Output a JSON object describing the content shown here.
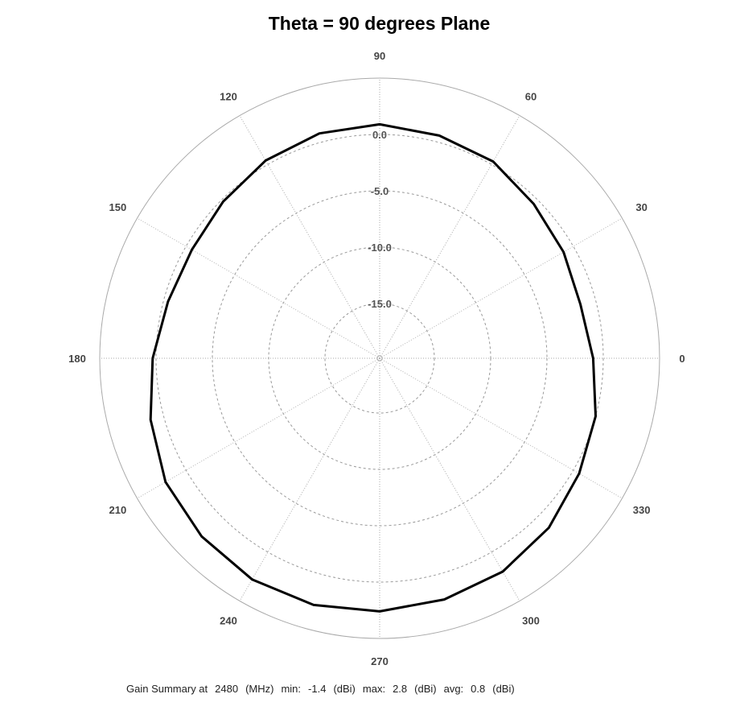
{
  "chart_data": {
    "type": "polar-line",
    "title": "Theta = 90 degrees Plane",
    "angle_unit": "degrees",
    "angle_ticks": [
      0,
      30,
      60,
      90,
      120,
      150,
      180,
      210,
      240,
      270,
      300,
      330
    ],
    "radial_ticks": [
      0.0,
      -5.0,
      -10.0,
      -15.0
    ],
    "radial_tick_labels": [
      "0.0",
      "-5.0",
      "-10.0",
      "-15.0"
    ],
    "rlim": [
      -20,
      5
    ],
    "grid": true,
    "series": [
      {
        "angles": [
          0,
          15,
          30,
          45,
          60,
          75,
          90,
          105,
          120,
          135,
          150,
          165,
          180,
          195,
          210,
          225,
          240,
          255,
          270,
          285,
          300,
          315,
          330,
          345
        ],
        "values": [
          -0.9,
          -1.4,
          -1.0,
          -0.5,
          0.3,
          0.6,
          0.9,
          0.8,
          0.4,
          -0.2,
          -0.6,
          -0.4,
          0.3,
          1.2,
          2.1,
          2.5,
          2.8,
          2.8,
          2.6,
          2.3,
          2.0,
          1.4,
          0.6,
          0.0
        ],
        "color": "#000000"
      }
    ]
  },
  "footer": {
    "label": "Gain Summary at",
    "freq": "2480",
    "freq_unit": "(MHz)",
    "min_label": "min:",
    "min": "-1.4",
    "min_unit": "(dBi)",
    "max_label": "max:",
    "max": "2.8",
    "max_unit": "(dBi)",
    "avg_label": "avg:",
    "avg": "0.8",
    "avg_unit": "(dBi)"
  }
}
